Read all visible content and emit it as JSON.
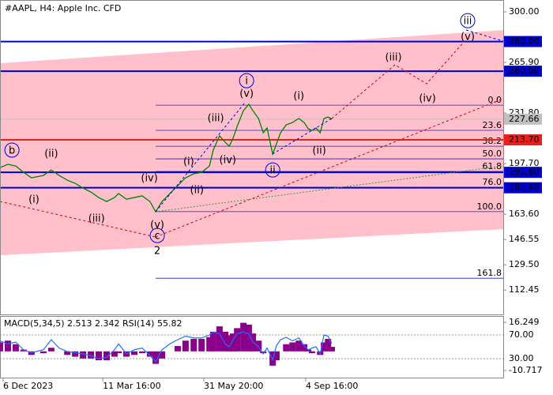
{
  "chart_data": [
    {
      "type": "line",
      "title": "#AAPL, H4:  Apple Inc. CFD",
      "x": [
        0,
        2.5,
        5,
        7.5,
        10,
        13.8,
        16.3,
        18.8,
        21.4,
        23.9,
        26.4,
        28.9,
        31.4,
        33.9,
        36.4,
        37.7,
        40.2,
        42.7,
        45.2,
        47.7,
        49.5,
        51.5,
        54,
        56.5,
        59,
        61.6,
        64.1,
        66.6,
        67.8,
        69.8,
        71.6,
        72.9,
        74.1,
        75.4,
        77.4,
        79.1,
        80.4,
        82.2,
        83.7,
        84.9,
        86.7,
        87.9,
        89.2,
        91,
        93,
        95,
        96.7,
        98,
        99.2,
        100.5,
        101.8,
        103,
        104.3,
        105.5
      ],
      "values": [
        195.0,
        197.2,
        196.1,
        191.8,
        188.1,
        189.7,
        193.4,
        189.7,
        186.5,
        184.4,
        181.2,
        178.5,
        174.8,
        172.1,
        174.8,
        177.5,
        173.7,
        174.8,
        175.9,
        172.1,
        165.2,
        172.1,
        177.5,
        182.8,
        188.1,
        190.8,
        191.8,
        196.1,
        206.8,
        216.4,
        212.1,
        209.4,
        214.8,
        222.8,
        233.4,
        237.7,
        233.4,
        228.1,
        218.5,
        221.7,
        204.1,
        211.0,
        218.5,
        223.8,
        225.4,
        228.1,
        225.4,
        221.2,
        220.1,
        221.7,
        218.5,
        228.1,
        229.1,
        227.7
      ],
      "color": "#008000",
      "xlim": [
        0,
        160
      ],
      "xticks": [
        {
          "value": 1,
          "label": "6 Dec 2023"
        },
        {
          "value": 32.7,
          "label": "11 Mar 16:00"
        },
        {
          "value": 64.8,
          "label": "31 May 20:00"
        },
        {
          "value": 97.2,
          "label": "4 Sep 16:00"
        }
      ],
      "ylim": [
        96,
        308
      ],
      "yticks": [
        {
          "value": 300,
          "label": "300.00"
        },
        {
          "value": 265.9,
          "label": "265.90"
        },
        {
          "value": 231.8,
          "label": "231.80"
        },
        {
          "value": 197.7,
          "label": "197.70"
        },
        {
          "value": 163.6,
          "label": "163.60"
        },
        {
          "value": 146.55,
          "label": "146.55"
        },
        {
          "value": 129.5,
          "label": "129.50"
        },
        {
          "value": 112.45,
          "label": "112.45"
        }
      ],
      "levels": [
        {
          "value": 280,
          "label": "280.00",
          "color": "#0000cd"
        },
        {
          "value": 260,
          "label": "260.00",
          "color": "#0000cd"
        },
        {
          "value": 227.66,
          "label": "227.66",
          "color": "#c0c0c0"
        },
        {
          "value": 213.7,
          "label": "213.70",
          "color": "#e8201a"
        },
        {
          "value": 191.8,
          "label": "191.80",
          "color": "#0000cd"
        },
        {
          "value": 181.4,
          "label": "181.40",
          "color": "#0000cd"
        }
      ],
      "fib_start": 49.5,
      "fib_levels": [
        {
          "label": "0.0",
          "price": 237.1
        },
        {
          "label": "23.6",
          "price": 220.1
        },
        {
          "label": "38.2",
          "price": 209.4
        },
        {
          "label": "50.0",
          "price": 200.9
        },
        {
          "label": "61.8",
          "price": 192.4
        },
        {
          "label": "76.0",
          "price": 181.7
        },
        {
          "label": "100.0",
          "price": 165.3
        },
        {
          "label": "161.8",
          "price": 120.4
        }
      ],
      "channel": {
        "color": "#ffc0cb",
        "x": [
          0,
          160
        ],
        "upper": [
          265.4,
          287.7
        ],
        "lower": [
          135.9,
          153.5
        ]
      },
      "annotations": [
        {
          "text": "b",
          "x": 3.8,
          "y": 206.8,
          "color": "#0000cd",
          "circled": true
        },
        {
          "text": "(i)",
          "x": 10.8,
          "y": 173.7,
          "color": "#cc0000",
          "circled": false
        },
        {
          "text": "(ii)",
          "x": 16.3,
          "y": 204.6,
          "color": "#cc0000",
          "circled": false
        },
        {
          "text": "(iii)",
          "x": 30.7,
          "y": 160.9,
          "color": "#cc0000",
          "circled": false
        },
        {
          "text": "(iv)",
          "x": 47.5,
          "y": 188.1,
          "color": "#cc0000",
          "circled": false
        },
        {
          "text": "(v)",
          "x": 50,
          "y": 156.7,
          "color": "#cc0000",
          "circled": false
        },
        {
          "text": "c",
          "x": 50,
          "y": 149.2,
          "color": "#0000cd",
          "circled": true
        },
        {
          "text": "2",
          "x": 50,
          "y": 139.1,
          "color": "#cc0000",
          "circled": false
        },
        {
          "text": "(i)",
          "x": 60,
          "y": 199.3,
          "color": "#cc0000",
          "circled": false
        },
        {
          "text": "(ii)",
          "x": 62.6,
          "y": 180.1,
          "color": "#cc0000",
          "circled": false
        },
        {
          "text": "(iii)",
          "x": 68.6,
          "y": 228.6,
          "color": "#cc0000",
          "circled": false
        },
        {
          "text": "(iv)",
          "x": 72.4,
          "y": 200.4,
          "color": "#cc0000",
          "circled": false
        },
        {
          "text": "(v)",
          "x": 78.4,
          "y": 245.1,
          "color": "#cc0000",
          "circled": false
        },
        {
          "text": "i",
          "x": 78.4,
          "y": 253.6,
          "color": "#0000cd",
          "circled": true
        },
        {
          "text": "ii",
          "x": 86.7,
          "y": 193.4,
          "color": "#0000cd",
          "circled": true
        },
        {
          "text": "(i)",
          "x": 95,
          "y": 243.5,
          "color": "#cc0000",
          "circled": false
        },
        {
          "text": "(ii)",
          "x": 101.5,
          "y": 206.8,
          "color": "#cc0000",
          "circled": false
        },
        {
          "text": "(iii)",
          "x": 125.1,
          "y": 269.6,
          "color": "#cc0000",
          "circled": false
        },
        {
          "text": "(iv)",
          "x": 135.9,
          "y": 241.9,
          "color": "#cc0000",
          "circled": false
        },
        {
          "text": "(v)",
          "x": 148.7,
          "y": 283.5,
          "color": "#cc0000",
          "circled": false
        },
        {
          "text": "iii",
          "x": 148.7,
          "y": 294.1,
          "color": "#0000cd",
          "circled": true
        }
      ]
    },
    {
      "type": "bar",
      "label": "MACD(5,34,5) 2.513 2.342 RSI(14) 55.82",
      "x": [
        0,
        2.5,
        5,
        7.5,
        10,
        13.8,
        16.3,
        18.8,
        21.4,
        23.9,
        26.4,
        28.9,
        31.4,
        33.9,
        36.4,
        37.7,
        40.2,
        42.7,
        45.2,
        47.7,
        49.5,
        51.5,
        54,
        56.5,
        59,
        61.6,
        64.1,
        66.6,
        67.8,
        69.8,
        71.6,
        72.9,
        74.1,
        75.4,
        77.4,
        79.1,
        80.4,
        82.2,
        83.7,
        84.9,
        86.7,
        87.9,
        89.2,
        91,
        93,
        95,
        96.7,
        98,
        99.2,
        100.5,
        101.8,
        103,
        104.3,
        105.5
      ],
      "xlim": [
        0,
        160
      ],
      "ylim": [
        -14.7,
        19.8
      ],
      "yticks": [
        16.249,
        -10.717
      ],
      "y2lim": [
        -2,
        102
      ],
      "y2ticks": [
        {
          "value": 70,
          "label": "70.00"
        },
        {
          "value": 30,
          "label": "30.00"
        }
      ],
      "series": [
        {
          "color": "#8b008b",
          "values": [
            5,
            6,
            4,
            1,
            -2,
            -1,
            2,
            0,
            -2,
            -3,
            -4,
            -4,
            -5,
            -5,
            -3,
            -1,
            -3,
            -2,
            -1,
            -3,
            -7,
            -4,
            0,
            3,
            6,
            7,
            7,
            8,
            11,
            14,
            11,
            9,
            10,
            13,
            16,
            15,
            10,
            6,
            -1,
            0,
            -8,
            -5,
            0,
            4,
            5,
            6,
            4,
            1,
            -1,
            0,
            -2,
            5,
            7,
            2.513
          ]
        },
        {
          "color": "#1e6fff",
          "axis": "y2",
          "values": [
            60,
            55,
            58,
            45,
            40,
            45,
            62,
            48,
            42,
            40,
            38,
            35,
            30,
            32,
            45,
            55,
            38,
            45,
            48,
            35,
            25,
            45,
            55,
            62,
            68,
            65,
            65,
            70,
            75,
            72,
            55,
            50,
            62,
            72,
            75,
            72,
            58,
            50,
            38,
            48,
            28,
            52,
            62,
            66,
            60,
            65,
            52,
            45,
            48,
            50,
            38,
            70,
            68,
            55.82
          ]
        }
      ]
    }
  ]
}
